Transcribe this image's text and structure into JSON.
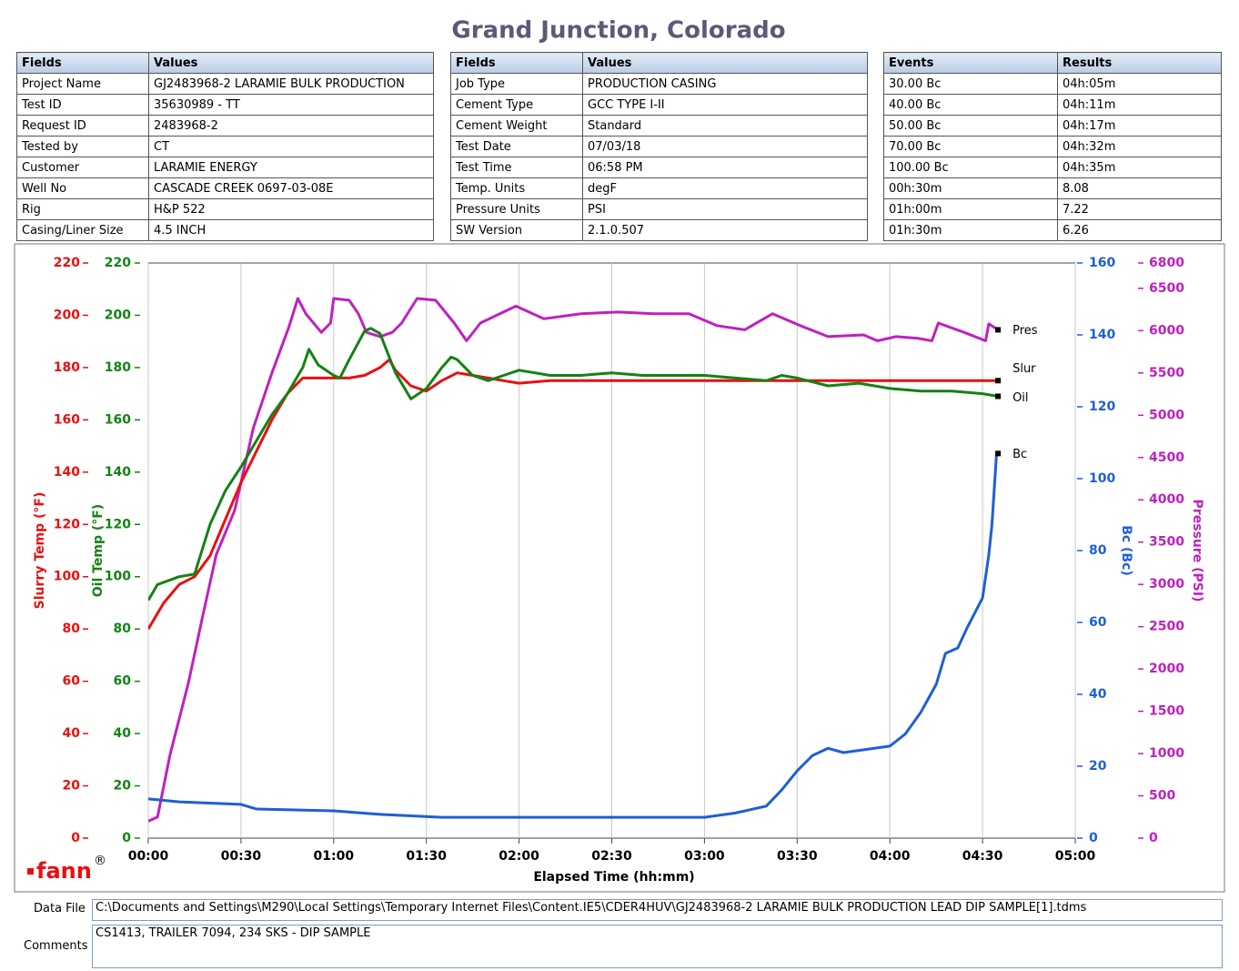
{
  "header": {
    "title": "Grand Junction, Colorado"
  },
  "tables": [
    {
      "header": [
        "Fields",
        "Values"
      ],
      "rows": [
        [
          "Project Name",
          "GJ2483968-2 LARAMIE BULK PRODUCTION"
        ],
        [
          "Test ID",
          "35630989 - TT"
        ],
        [
          "Request ID",
          "2483968-2"
        ],
        [
          "Tested by",
          "CT"
        ],
        [
          "Customer",
          "LARAMIE ENERGY"
        ],
        [
          "Well No",
          "CASCADE CREEK 0697-03-08E"
        ],
        [
          "Rig",
          "H&P 522"
        ],
        [
          "Casing/Liner Size",
          "4.5 INCH"
        ]
      ]
    },
    {
      "header": [
        "Fields",
        "Values"
      ],
      "rows": [
        [
          "Job Type",
          "PRODUCTION CASING"
        ],
        [
          "Cement Type",
          "GCC TYPE I-II"
        ],
        [
          "Cement Weight",
          "Standard"
        ],
        [
          "Test Date",
          "07/03/18"
        ],
        [
          "Test Time",
          "06:58 PM"
        ],
        [
          "Temp. Units",
          "degF"
        ],
        [
          "Pressure Units",
          "PSI"
        ],
        [
          "SW Version",
          "2.1.0.507"
        ]
      ]
    },
    {
      "header": [
        "Events",
        "Results"
      ],
      "rows": [
        [
          "30.00 Bc",
          "04h:05m"
        ],
        [
          "40.00 Bc",
          "04h:11m"
        ],
        [
          "50.00 Bc",
          "04h:17m"
        ],
        [
          "70.00 Bc",
          "04h:32m"
        ],
        [
          "100.00 Bc",
          "04h:35m"
        ],
        [
          "00h:30m",
          "8.08"
        ],
        [
          "01h:00m",
          "7.22"
        ],
        [
          "01h:30m",
          "6.26"
        ]
      ]
    }
  ],
  "chart_data": {
    "type": "line",
    "xlabel": "Elapsed Time (hh:mm)",
    "xlim": [
      0,
      300
    ],
    "xticks": [
      {
        "value": 0,
        "label": "00:00"
      },
      {
        "value": 30,
        "label": "00:30"
      },
      {
        "value": 60,
        "label": "01:00"
      },
      {
        "value": 90,
        "label": "01:30"
      },
      {
        "value": 120,
        "label": "02:00"
      },
      {
        "value": 150,
        "label": "02:30"
      },
      {
        "value": 180,
        "label": "03:00"
      },
      {
        "value": 210,
        "label": "03:30"
      },
      {
        "value": 240,
        "label": "04:00"
      },
      {
        "value": 270,
        "label": "04:30"
      },
      {
        "value": 300,
        "label": "05:00"
      }
    ],
    "grid": true,
    "yaxes": [
      {
        "label": "Slurry Temp (°F)",
        "color": "#e8100f",
        "side": "left",
        "lim": [
          0,
          220
        ],
        "ticks": [
          0,
          20,
          40,
          60,
          80,
          100,
          120,
          140,
          160,
          180,
          200,
          220
        ]
      },
      {
        "label": "Oil Temp (°F)",
        "color": "#148214",
        "side": "left",
        "lim": [
          0,
          220
        ],
        "ticks": [
          0,
          20,
          40,
          60,
          80,
          100,
          120,
          140,
          160,
          180,
          200,
          220
        ]
      },
      {
        "label": "Bc (Bc)",
        "color": "#1f5fd6",
        "side": "right",
        "lim": [
          0,
          160
        ],
        "ticks": [
          0,
          20,
          40,
          60,
          80,
          100,
          120,
          140,
          160
        ]
      },
      {
        "label": "Pressure (PSI)",
        "color": "#c020c0",
        "side": "right",
        "lim": [
          0,
          6800
        ],
        "ticks": [
          0,
          500,
          1000,
          1500,
          2000,
          2500,
          3000,
          3500,
          4000,
          4500,
          5000,
          5500,
          6000,
          6500,
          6800
        ]
      }
    ],
    "series": [
      {
        "name": "Pres",
        "color": "#c020c0",
        "axis": 3,
        "x": [
          0,
          3,
          7,
          10,
          13,
          17.4,
          22,
          28,
          34,
          40,
          45.5,
          48.4,
          51,
          56,
          59,
          60,
          65,
          68,
          70.6,
          75,
          79,
          82,
          87,
          93,
          99,
          103,
          107.5,
          112,
          119,
          128,
          140,
          152,
          163.6,
          175,
          184,
          193,
          202,
          211,
          220,
          231.5,
          236,
          242,
          249,
          253.6,
          255.7,
          264,
          271,
          272,
          275
        ],
        "values": [
          200,
          250,
          980,
          1410,
          1840,
          2590,
          3350,
          3880,
          4850,
          5500,
          6040,
          6380,
          6200,
          5980,
          6090,
          6380,
          6360,
          6200,
          5980,
          5930,
          5980,
          6090,
          6380,
          6360,
          6090,
          5880,
          6090,
          6170,
          6290,
          6140,
          6200,
          6220,
          6200,
          6200,
          6060,
          6010,
          6200,
          6060,
          5930,
          5950,
          5880,
          5930,
          5910,
          5880,
          6090,
          5980,
          5880,
          6080,
          6010
        ]
      },
      {
        "name": "Slur",
        "color": "#e8100f",
        "axis": 0,
        "x": [
          0,
          5,
          10,
          15,
          20,
          25,
          30,
          35,
          40,
          45,
          50,
          55,
          60,
          65,
          70,
          75,
          78,
          80,
          85,
          90,
          95,
          100,
          105,
          110,
          115,
          120,
          130,
          160,
          200,
          240,
          275
        ],
        "values": [
          80,
          90,
          97,
          100,
          108,
          122,
          136,
          148,
          160,
          170,
          176,
          176,
          176,
          176,
          177,
          180,
          183,
          179,
          173,
          171,
          175,
          178,
          177,
          176,
          175,
          174,
          175,
          175,
          175,
          175,
          175
        ]
      },
      {
        "name": "Oil",
        "color": "#148214",
        "axis": 1,
        "x": [
          0,
          3,
          10,
          15,
          20,
          25,
          30,
          35,
          40,
          45,
          50,
          52,
          55,
          60,
          62,
          65,
          70,
          72,
          75,
          80,
          85,
          90,
          95,
          98,
          100,
          105,
          110,
          115,
          120,
          125,
          130,
          140,
          150,
          160,
          170,
          180,
          190,
          200,
          205,
          210,
          220,
          230,
          240,
          250,
          260,
          270,
          275
        ],
        "values": [
          91,
          97,
          100,
          101,
          120,
          133,
          142,
          152,
          162,
          170,
          180,
          187,
          181,
          177,
          176,
          183,
          194,
          195,
          193,
          178,
          168,
          172,
          180,
          184,
          183,
          177,
          175,
          177,
          179,
          178,
          177,
          177,
          178,
          177,
          177,
          177,
          176,
          175,
          177,
          176,
          173,
          174,
          172,
          171,
          171,
          170,
          169
        ]
      },
      {
        "name": "Bc",
        "color": "#1f5fd6",
        "axis": 2,
        "x": [
          0,
          10,
          30,
          35,
          60,
          75,
          95,
          120,
          180,
          190,
          200,
          205,
          210,
          215,
          220,
          225,
          240,
          245,
          250,
          255,
          258,
          262,
          265,
          268,
          270,
          272,
          273,
          274.5,
          275
        ],
        "values": [
          10.9,
          10.1,
          9.4,
          8.1,
          7.6,
          6.6,
          5.8,
          5.8,
          5.8,
          7,
          8.9,
          13.4,
          18.7,
          23,
          25,
          23.8,
          25.6,
          29,
          35,
          42.8,
          51.4,
          52.9,
          58.5,
          63.5,
          66.8,
          78.7,
          86.8,
          106.6,
          107
        ]
      }
    ]
  },
  "logo": {
    "text": "fann",
    "mark": "®"
  },
  "footer": {
    "data_file_label": "Data File",
    "data_file": "C:\\Documents and Settings\\M290\\Local Settings\\Temporary Internet Files\\Content.IE5\\CDER4HUV\\GJ2483968-2 LARAMIE BULK PRODUCTION LEAD DIP SAMPLE[1].tdms",
    "comments_label": "Comments",
    "comments": "CS1413, TRAILER 7094, 234 SKS - DIP SAMPLE"
  }
}
